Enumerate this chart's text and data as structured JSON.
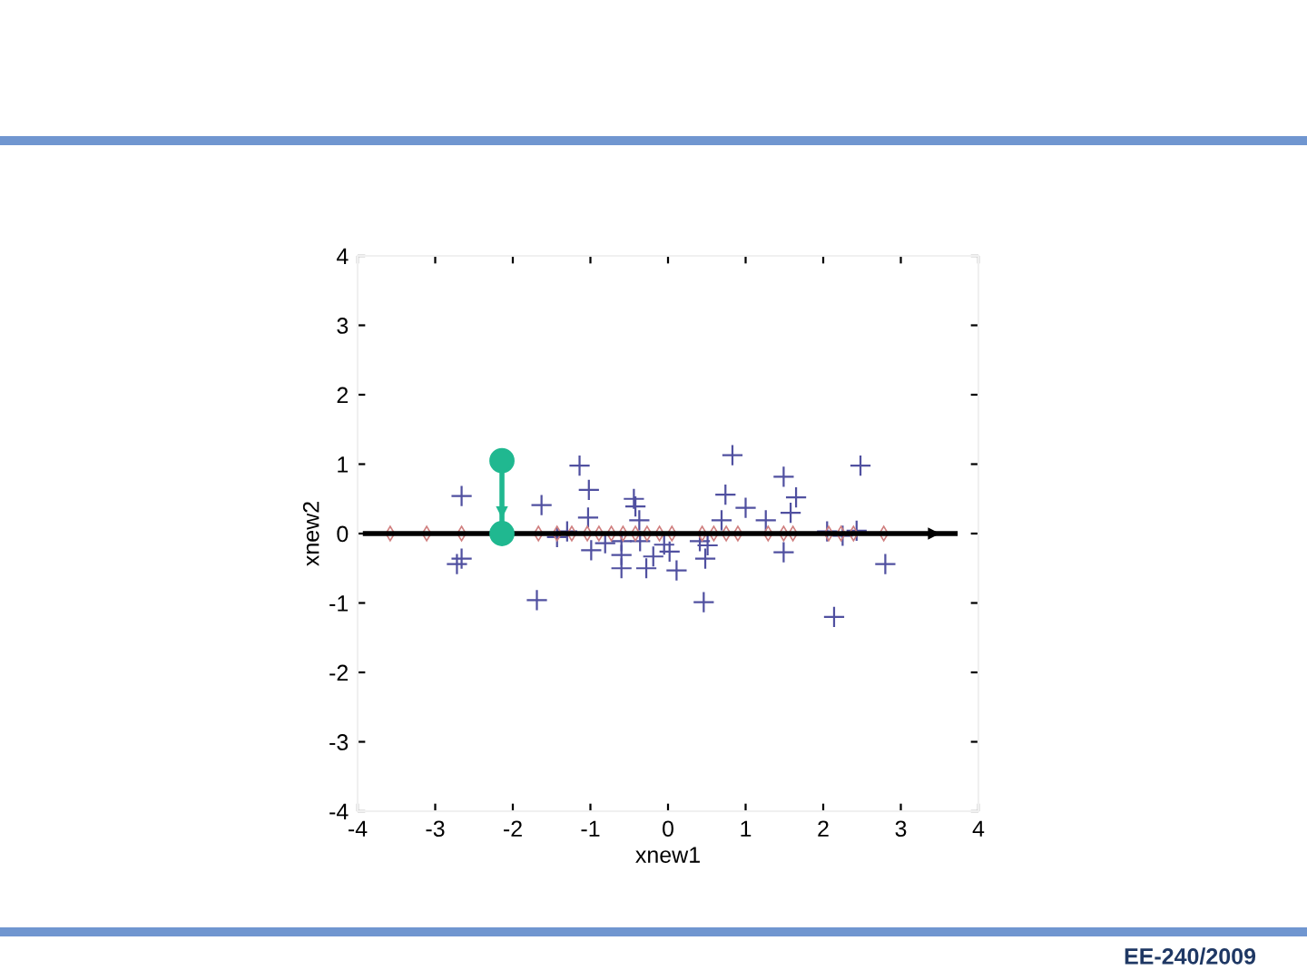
{
  "chart_data": {
    "type": "scatter",
    "xlabel": "xnew1",
    "ylabel": "xnew2",
    "xlim": [
      -4,
      4
    ],
    "ylim": [
      -4,
      4
    ],
    "xticks": [
      -4,
      -3,
      -2,
      -1,
      0,
      1,
      2,
      3,
      4
    ],
    "yticks": [
      -4,
      -3,
      -2,
      -1,
      0,
      1,
      2,
      3,
      4
    ],
    "grid": false,
    "legend": false,
    "annotations": [
      "EE-240/2009"
    ],
    "series": [
      {
        "type": "scatter",
        "marker": "cross",
        "color": "#5050a0",
        "x": [
          -1.14,
          -1.02,
          -1.03,
          -0.99,
          -1.63,
          -1.69,
          -2.66,
          -2.66,
          -2.72,
          -1.43,
          -1.3,
          -0.81,
          -0.44,
          -0.42,
          -0.37,
          -0.6,
          -0.6,
          -0.6,
          -0.28,
          -0.36,
          -0.19,
          -0.05,
          0.02,
          0.11,
          0.46,
          0.48,
          0.51,
          0.41,
          0.69,
          0.74,
          0.83,
          1.0,
          1.26,
          1.49,
          1.65,
          1.58,
          1.49,
          2.05,
          2.14,
          2.25,
          2.43,
          2.48,
          2.8
        ],
        "values": [
          0.98,
          0.63,
          0.23,
          -0.24,
          0.41,
          -0.96,
          0.54,
          -0.36,
          -0.44,
          -0.05,
          0.03,
          -0.14,
          0.5,
          0.39,
          0.19,
          -0.11,
          -0.31,
          -0.5,
          -0.5,
          -0.11,
          -0.33,
          -0.16,
          -0.26,
          -0.53,
          -0.99,
          -0.36,
          -0.17,
          -0.11,
          0.19,
          0.56,
          1.13,
          0.37,
          0.19,
          0.82,
          0.52,
          0.3,
          -0.27,
          0.03,
          -1.2,
          -0.03,
          0.04,
          0.98,
          -0.44
        ]
      },
      {
        "type": "scatter",
        "marker": "diamond",
        "color": "#d08080",
        "x": [
          -3.58,
          -3.11,
          -2.66,
          -1.67,
          -1.43,
          -1.24,
          -1.04,
          -0.89,
          -0.73,
          -0.58,
          -0.42,
          -0.27,
          -0.11,
          0.05,
          0.44,
          0.59,
          0.75,
          0.9,
          1.29,
          1.49,
          1.61,
          2.07,
          2.23,
          2.39,
          2.78
        ],
        "values": [
          0,
          0,
          0,
          0,
          0,
          0,
          0,
          0,
          0,
          0,
          0,
          0,
          0,
          0,
          0,
          0,
          0,
          0,
          0,
          0,
          0,
          0,
          0,
          0,
          0
        ]
      },
      {
        "type": "line",
        "color": "#000000",
        "marker": "none",
        "x": [
          -3.9,
          3.7
        ],
        "values": [
          0,
          0
        ]
      },
      {
        "type": "line",
        "color": "#20b890",
        "marker": "circle",
        "x": [
          -2.14,
          -2.14
        ],
        "values": [
          1.05,
          0
        ]
      }
    ]
  }
}
